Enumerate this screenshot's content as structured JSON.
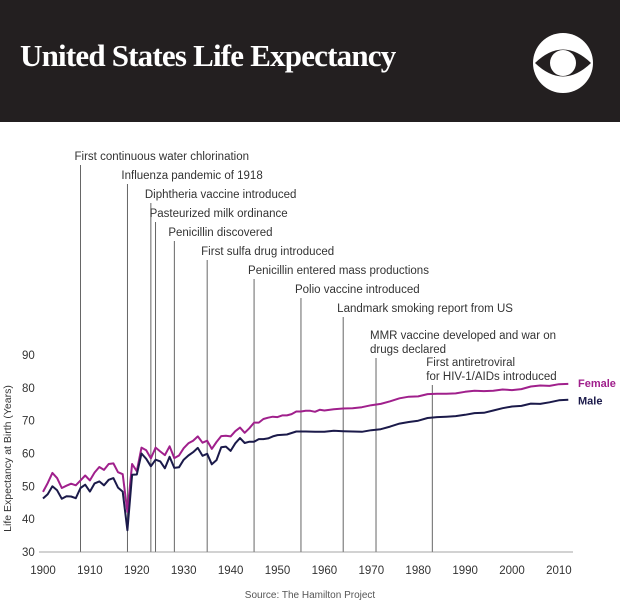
{
  "header": {
    "title": "United States Life Expectancy",
    "logo_icon": "cbs-eye-icon",
    "background": "#231f20"
  },
  "source": "Source: The Hamilton Project",
  "chart_data": {
    "type": "line",
    "title": "United States Life Expectancy",
    "xlabel": "",
    "ylabel": "Life Expectancy at Birth (Years)",
    "xlim": [
      1900,
      2013
    ],
    "ylim": [
      30,
      90
    ],
    "xticks": [
      1900,
      1910,
      1920,
      1930,
      1940,
      1950,
      1960,
      1970,
      1980,
      1990,
      2000,
      2010
    ],
    "yticks": [
      30,
      40,
      50,
      60,
      70,
      80,
      90
    ],
    "grid": false,
    "legend": "labels at line ends (right)",
    "series": [
      {
        "name": "Female",
        "color": "#a0208c",
        "x": [
          1900,
          1901,
          1902,
          1903,
          1904,
          1905,
          1906,
          1907,
          1908,
          1909,
          1910,
          1911,
          1912,
          1913,
          1914,
          1915,
          1916,
          1917,
          1918,
          1919,
          1920,
          1921,
          1922,
          1923,
          1924,
          1925,
          1926,
          1927,
          1928,
          1929,
          1930,
          1931,
          1932,
          1933,
          1934,
          1935,
          1936,
          1937,
          1938,
          1939,
          1940,
          1941,
          1942,
          1943,
          1944,
          1945,
          1946,
          1947,
          1948,
          1949,
          1950,
          1951,
          1952,
          1953,
          1954,
          1955,
          1956,
          1957,
          1958,
          1959,
          1960,
          1962,
          1964,
          1966,
          1968,
          1970,
          1972,
          1974,
          1976,
          1978,
          1980,
          1982,
          1984,
          1986,
          1988,
          1990,
          1992,
          1994,
          1996,
          1998,
          2000,
          2002,
          2004,
          2006,
          2008,
          2010,
          2012
        ],
        "values": [
          48.3,
          51.0,
          54.1,
          52.5,
          49.5,
          50.2,
          50.8,
          50.3,
          51.8,
          53.3,
          51.8,
          54.2,
          55.9,
          55.0,
          56.8,
          57.0,
          54.3,
          53.7,
          42.2,
          56.8,
          54.6,
          61.8,
          61.0,
          58.5,
          61.8,
          60.6,
          59.5,
          62.2,
          58.6,
          59.4,
          61.6,
          63.1,
          63.9,
          65.2,
          63.3,
          63.9,
          61.4,
          63.5,
          65.3,
          65.4,
          65.2,
          66.8,
          67.9,
          66.3,
          67.7,
          69.4,
          69.4,
          70.5,
          70.9,
          71.2,
          71.1,
          71.6,
          71.6,
          72.0,
          72.8,
          72.8,
          73.0,
          73.0,
          72.7,
          73.3,
          73.1,
          73.5,
          73.7,
          73.8,
          74.1,
          74.7,
          75.1,
          75.9,
          76.8,
          77.3,
          77.4,
          78.1,
          78.2,
          78.2,
          78.3,
          78.8,
          79.1,
          79.0,
          79.1,
          79.5,
          79.3,
          79.6,
          80.4,
          80.7,
          80.6,
          81.1,
          81.2
        ]
      },
      {
        "name": "Male",
        "color": "#1b1a4a",
        "x": [
          1900,
          1901,
          1902,
          1903,
          1904,
          1905,
          1906,
          1907,
          1908,
          1909,
          1910,
          1911,
          1912,
          1913,
          1914,
          1915,
          1916,
          1917,
          1918,
          1919,
          1920,
          1921,
          1922,
          1923,
          1924,
          1925,
          1926,
          1927,
          1928,
          1929,
          1930,
          1931,
          1932,
          1933,
          1934,
          1935,
          1936,
          1937,
          1938,
          1939,
          1940,
          1941,
          1942,
          1943,
          1944,
          1945,
          1946,
          1947,
          1948,
          1949,
          1950,
          1952,
          1954,
          1956,
          1958,
          1960,
          1962,
          1964,
          1966,
          1968,
          1970,
          1972,
          1974,
          1976,
          1978,
          1980,
          1982,
          1984,
          1986,
          1988,
          1990,
          1992,
          1994,
          1996,
          1998,
          2000,
          2002,
          2004,
          2006,
          2008,
          2010,
          2012
        ],
        "values": [
          46.3,
          47.6,
          50.0,
          48.8,
          46.2,
          47.0,
          46.9,
          46.4,
          49.5,
          50.5,
          48.4,
          50.9,
          51.5,
          50.3,
          52.0,
          52.5,
          49.6,
          48.4,
          36.6,
          53.5,
          53.6,
          60.0,
          58.4,
          56.1,
          58.1,
          57.6,
          55.5,
          59.0,
          55.6,
          55.8,
          58.1,
          59.4,
          60.4,
          61.7,
          59.3,
          59.9,
          56.7,
          58.0,
          61.9,
          62.1,
          60.8,
          63.1,
          64.7,
          63.2,
          63.6,
          63.6,
          64.4,
          64.4,
          64.6,
          65.2,
          65.6,
          65.8,
          66.7,
          66.7,
          66.6,
          66.6,
          66.9,
          66.8,
          66.7,
          66.6,
          67.1,
          67.4,
          68.2,
          69.1,
          69.6,
          70.0,
          70.8,
          71.1,
          71.2,
          71.4,
          71.8,
          72.3,
          72.4,
          73.1,
          73.8,
          74.3,
          74.5,
          75.2,
          75.1,
          75.6,
          76.2,
          76.4
        ]
      }
    ],
    "annotations": [
      {
        "year": 1908,
        "label_lines": [
          "First continuous water chlorination"
        ]
      },
      {
        "year": 1918,
        "label_lines": [
          "Influenza pandemic of 1918"
        ]
      },
      {
        "year": 1923,
        "label_lines": [
          "Diphtheria vaccine introduced"
        ]
      },
      {
        "year": 1924,
        "label_lines": [
          "Pasteurized milk ordinance"
        ]
      },
      {
        "year": 1928,
        "label_lines": [
          "Penicillin discovered"
        ]
      },
      {
        "year": 1935,
        "label_lines": [
          "First sulfa drug introduced"
        ]
      },
      {
        "year": 1945,
        "label_lines": [
          "Penicillin entered mass productions"
        ]
      },
      {
        "year": 1955,
        "label_lines": [
          "Polio vaccine introduced"
        ]
      },
      {
        "year": 1964,
        "label_lines": [
          "Landmark smoking report from US"
        ]
      },
      {
        "year": 1971,
        "label_lines": [
          "MMR vaccine developed and war on",
          "drugs declared"
        ]
      },
      {
        "year": 1983,
        "label_lines": [
          "First antiretroviral",
          "for HIV-1/AIDs introduced"
        ]
      }
    ]
  }
}
